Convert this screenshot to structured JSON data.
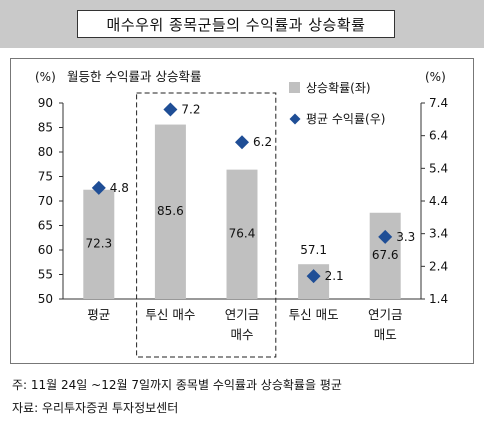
{
  "page_title": "매수우위 종목군들의 수익률과 상승확률",
  "notes": {
    "line1": "주: 11월 24일 ~12월 7일까지 종목별 수익률과 상승확률을 평균",
    "line2": "자료: 우리투자증권 투자정보센터"
  },
  "colors": {
    "bar": "#c0c0c0",
    "marker": "#1f4e96",
    "title_band": "#c9c9c9",
    "frame": "#777777"
  },
  "chart_data": {
    "type": "bar",
    "title": "",
    "subtitle": "월등한 수익률과 상승확률",
    "categories": [
      [
        "평균"
      ],
      [
        "투신 매수"
      ],
      [
        "연기금",
        "매수"
      ],
      [
        "투신 매도"
      ],
      [
        "연기금",
        "매도"
      ]
    ],
    "left_axis": {
      "unit": "(%)",
      "min": 50,
      "max": 90,
      "ticks": [
        50,
        55,
        60,
        65,
        70,
        75,
        80,
        85,
        90
      ]
    },
    "right_axis": {
      "unit": "(%)",
      "min": 1.4,
      "max": 7.4,
      "ticks": [
        1.4,
        2.4,
        3.4,
        4.4,
        5.4,
        6.4,
        7.4
      ]
    },
    "series": [
      {
        "name": "상승확률(좌)",
        "kind": "bar",
        "axis": "left",
        "values": [
          72.3,
          85.6,
          76.4,
          57.1,
          67.6
        ]
      },
      {
        "name": "평균 수익률(우)",
        "kind": "marker",
        "axis": "right",
        "values": [
          4.8,
          7.2,
          6.2,
          2.1,
          3.3
        ]
      }
    ],
    "bar_labels": [
      "72.3",
      "85.6",
      "76.4",
      "57.1",
      "67.6"
    ],
    "marker_labels": [
      "4.8",
      "7.2",
      "6.2",
      "2.1",
      "3.3"
    ],
    "highlight": {
      "categories": [
        1,
        2
      ],
      "style": "dashed-box"
    },
    "legend_position": "top-right",
    "grid": false
  }
}
